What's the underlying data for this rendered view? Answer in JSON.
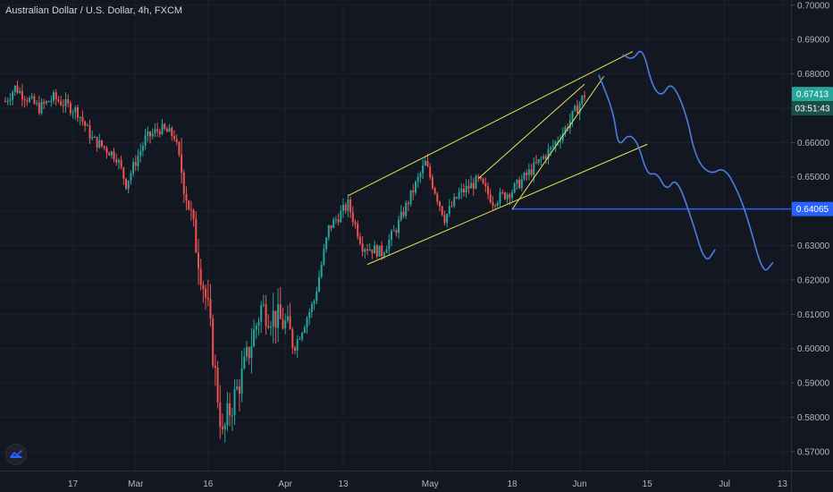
{
  "header": {
    "title": "Australian Dollar / U.S. Dollar, 4h, FXCM"
  },
  "colors": {
    "background": "#131722",
    "bull": "#26a69a",
    "bear": "#ef5350",
    "trendline": "#e6e64c",
    "projection": "#4a7fe0",
    "level": "#2962ff",
    "axis_text": "#b2b5be"
  },
  "chart_data": {
    "type": "candlestick",
    "symbol": "AUDUSD",
    "timeframe": "4h",
    "x_ticks": [
      "17",
      "Mar",
      "16",
      "Apr",
      "13",
      "May",
      "18",
      "Jun",
      "15",
      "Jul",
      "13"
    ],
    "y_ticks": [
      "0.70000",
      "0.69000",
      "0.68000",
      "0.67000",
      "0.66000",
      "0.65000",
      "0.64000",
      "0.63000",
      "0.62000",
      "0.61000",
      "0.60000",
      "0.59000",
      "0.58000",
      "0.57000"
    ],
    "ylim": [
      0.5645,
      0.7015
    ],
    "last_price": "0.67413",
    "countdown": "03:51:43",
    "level_price": "0.64065",
    "level_value": 0.64065,
    "price_path": [
      {
        "date": "2020-02-03",
        "price": 0.672
      },
      {
        "date": "2020-02-05",
        "price": 0.676
      },
      {
        "date": "2020-02-10",
        "price": 0.67
      },
      {
        "date": "2020-02-13",
        "price": 0.673
      },
      {
        "date": "2020-02-18",
        "price": 0.669
      },
      {
        "date": "2020-02-21",
        "price": 0.661
      },
      {
        "date": "2020-02-26",
        "price": 0.656
      },
      {
        "date": "2020-02-28",
        "price": 0.648
      },
      {
        "date": "2020-03-03",
        "price": 0.661
      },
      {
        "date": "2020-03-06",
        "price": 0.664
      },
      {
        "date": "2020-03-09",
        "price": 0.662
      },
      {
        "date": "2020-03-12",
        "price": 0.642
      },
      {
        "date": "2020-03-16",
        "price": 0.611
      },
      {
        "date": "2020-03-19",
        "price": 0.574
      },
      {
        "date": "2020-03-20",
        "price": 0.58
      },
      {
        "date": "2020-03-23",
        "price": 0.592
      },
      {
        "date": "2020-03-27",
        "price": 0.612
      },
      {
        "date": "2020-04-01",
        "price": 0.607
      },
      {
        "date": "2020-04-03",
        "price": 0.601
      },
      {
        "date": "2020-04-07",
        "price": 0.614
      },
      {
        "date": "2020-04-10",
        "price": 0.635
      },
      {
        "date": "2020-04-14",
        "price": 0.642
      },
      {
        "date": "2020-04-17",
        "price": 0.63
      },
      {
        "date": "2020-04-21",
        "price": 0.628
      },
      {
        "date": "2020-04-24",
        "price": 0.635
      },
      {
        "date": "2020-04-30",
        "price": 0.654
      },
      {
        "date": "2020-05-04",
        "price": 0.638
      },
      {
        "date": "2020-05-07",
        "price": 0.645
      },
      {
        "date": "2020-05-11",
        "price": 0.649
      },
      {
        "date": "2020-05-14",
        "price": 0.643
      },
      {
        "date": "2020-05-18",
        "price": 0.646
      },
      {
        "date": "2020-05-22",
        "price": 0.652
      },
      {
        "date": "2020-05-26",
        "price": 0.658
      },
      {
        "date": "2020-05-29",
        "price": 0.664
      },
      {
        "date": "2020-06-02",
        "price": 0.674
      }
    ],
    "trendlines": [
      {
        "from": {
          "date": "2020-04-14",
          "price": 0.6445
        },
        "to": {
          "date": "2020-06-12",
          "price": 0.6865
        }
      },
      {
        "from": {
          "date": "2020-04-18",
          "price": 0.6245
        },
        "to": {
          "date": "2020-06-15",
          "price": 0.6595
        }
      },
      {
        "from": {
          "date": "2020-05-18",
          "price": 0.6405
        },
        "to": {
          "date": "2020-06-06",
          "price": 0.6793
        }
      },
      {
        "from": {
          "date": "2020-05-11",
          "price": 0.6495
        },
        "to": {
          "date": "2020-06-02",
          "price": 0.677
        }
      }
    ],
    "projections": [
      {
        "points": [
          {
            "date": "2020-06-05",
            "price": 0.6795
          },
          {
            "date": "2020-06-08",
            "price": 0.669
          },
          {
            "date": "2020-06-09",
            "price": 0.6585
          },
          {
            "date": "2020-06-11",
            "price": 0.6625
          },
          {
            "date": "2020-06-13",
            "price": 0.6603
          },
          {
            "date": "2020-06-15",
            "price": 0.6504
          },
          {
            "date": "2020-06-17",
            "price": 0.6513
          },
          {
            "date": "2020-06-19",
            "price": 0.6458
          },
          {
            "date": "2020-06-21",
            "price": 0.65
          },
          {
            "date": "2020-06-24",
            "price": 0.6387
          },
          {
            "date": "2020-06-27",
            "price": 0.6245
          },
          {
            "date": "2020-06-29",
            "price": 0.6287
          }
        ]
      },
      {
        "points": [
          {
            "date": "2020-06-10",
            "price": 0.6855
          },
          {
            "date": "2020-06-12",
            "price": 0.684
          },
          {
            "date": "2020-06-14",
            "price": 0.688
          },
          {
            "date": "2020-06-16",
            "price": 0.6764
          },
          {
            "date": "2020-06-18",
            "price": 0.6732
          },
          {
            "date": "2020-06-20",
            "price": 0.678
          },
          {
            "date": "2020-06-23",
            "price": 0.669
          },
          {
            "date": "2020-06-25",
            "price": 0.6554
          },
          {
            "date": "2020-06-28",
            "price": 0.6505
          },
          {
            "date": "2020-07-01",
            "price": 0.653
          },
          {
            "date": "2020-07-04",
            "price": 0.6451
          },
          {
            "date": "2020-07-06",
            "price": 0.637
          },
          {
            "date": "2020-07-09",
            "price": 0.6215
          },
          {
            "date": "2020-07-11",
            "price": 0.625
          }
        ]
      }
    ]
  }
}
